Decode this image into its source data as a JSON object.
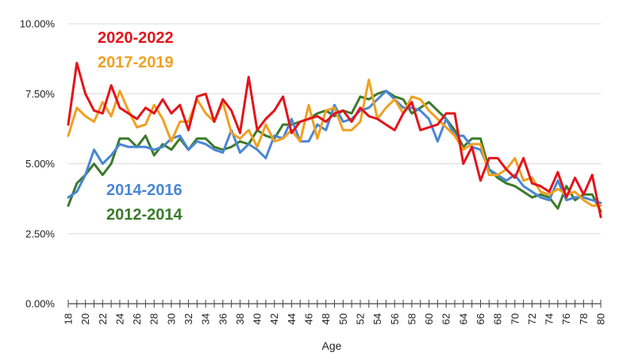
{
  "chart_data": {
    "type": "line",
    "title": "",
    "xlabel": "Age",
    "ylabel": "",
    "x_min": 18,
    "x_max": 80,
    "x_tick_labels": [
      "18",
      "20",
      "22",
      "24",
      "26",
      "28",
      "30",
      "32",
      "34",
      "36",
      "38",
      "40",
      "42",
      "44",
      "46",
      "48",
      "50",
      "52",
      "54",
      "56",
      "58",
      "60",
      "62",
      "64",
      "66",
      "68",
      "70",
      "72",
      "74",
      "76",
      "78",
      "80"
    ],
    "ylim": [
      0,
      10
    ],
    "y_ticks": [
      0,
      2.5,
      5,
      7.5,
      10
    ],
    "y_tick_labels": [
      "0.00%",
      "2.50%",
      "5.00%",
      "7.50%",
      "10.00%"
    ],
    "grid": true,
    "legend_placement": "inline-labels",
    "series": [
      {
        "name": "2012-2014",
        "color": "#3b7a2a",
        "values": [
          3.5,
          4.3,
          4.6,
          5.0,
          4.6,
          5.0,
          5.9,
          5.9,
          5.6,
          6.0,
          5.3,
          5.7,
          5.5,
          5.9,
          5.5,
          5.9,
          5.9,
          5.6,
          5.5,
          5.6,
          5.8,
          5.7,
          6.2,
          6.0,
          5.9,
          6.4,
          6.4,
          6.5,
          6.6,
          6.8,
          6.9,
          6.7,
          6.9,
          6.8,
          7.4,
          7.3,
          7.5,
          7.6,
          7.4,
          7.3,
          6.8,
          7.0,
          7.2,
          6.9,
          6.6,
          6.2,
          5.6,
          5.9,
          5.9,
          4.8,
          4.5,
          4.3,
          4.2,
          4.0,
          3.8,
          3.9,
          3.8,
          3.4,
          4.2,
          3.7,
          3.9,
          3.9,
          3.3
        ]
      },
      {
        "name": "2014-2016",
        "color": "#4a86d4",
        "values": [
          3.8,
          4.0,
          4.6,
          5.5,
          5.0,
          5.3,
          5.7,
          5.6,
          5.6,
          5.6,
          5.5,
          5.6,
          5.9,
          6.0,
          5.5,
          5.8,
          5.7,
          5.5,
          5.4,
          6.2,
          5.4,
          5.7,
          5.5,
          5.2,
          6.0,
          5.9,
          6.6,
          5.8,
          5.8,
          6.4,
          6.2,
          7.1,
          6.5,
          6.6,
          6.9,
          7.0,
          7.3,
          7.6,
          7.3,
          7.0,
          7.0,
          6.9,
          6.6,
          5.8,
          6.6,
          6.0,
          6.0,
          5.6,
          5.5,
          4.8,
          4.6,
          4.4,
          4.6,
          4.2,
          4.0,
          3.8,
          3.7,
          4.4,
          3.7,
          3.8,
          3.8,
          3.7,
          3.6
        ]
      },
      {
        "name": "2017-2019",
        "color": "#f0a020",
        "values": [
          6.0,
          7.0,
          6.7,
          6.5,
          7.2,
          6.7,
          7.6,
          6.9,
          6.3,
          6.4,
          7.1,
          6.6,
          5.8,
          6.5,
          6.5,
          7.3,
          6.8,
          6.5,
          7.2,
          6.1,
          5.9,
          6.2,
          5.6,
          6.4,
          5.8,
          5.9,
          6.2,
          5.8,
          7.1,
          5.9,
          6.9,
          7.0,
          6.2,
          6.2,
          6.5,
          8.0,
          6.6,
          7.0,
          7.3,
          6.8,
          7.4,
          7.3,
          6.9,
          6.6,
          6.3,
          6.0,
          5.5,
          5.7,
          5.7,
          4.6,
          4.6,
          4.8,
          5.2,
          4.4,
          4.5,
          4.0,
          3.9,
          4.1,
          3.9,
          4.0,
          3.7,
          3.5,
          3.5
        ]
      },
      {
        "name": "2020-2022",
        "color": "#e3141b",
        "values": [
          6.4,
          8.6,
          7.5,
          6.9,
          6.8,
          7.8,
          7.0,
          6.8,
          6.6,
          7.0,
          6.8,
          7.3,
          6.8,
          7.1,
          6.2,
          7.4,
          7.5,
          6.5,
          7.3,
          6.9,
          6.1,
          8.1,
          6.2,
          6.6,
          6.9,
          7.4,
          6.1,
          6.5,
          6.6,
          6.7,
          6.5,
          6.8,
          6.9,
          6.5,
          7.0,
          6.7,
          6.6,
          6.4,
          6.2,
          6.8,
          7.2,
          6.2,
          6.3,
          6.4,
          6.8,
          6.8,
          5.0,
          5.6,
          4.4,
          5.2,
          5.2,
          4.8,
          4.5,
          5.2,
          4.3,
          4.2,
          4.0,
          4.7,
          3.8,
          4.5,
          3.9,
          4.6,
          3.1
        ]
      }
    ]
  }
}
